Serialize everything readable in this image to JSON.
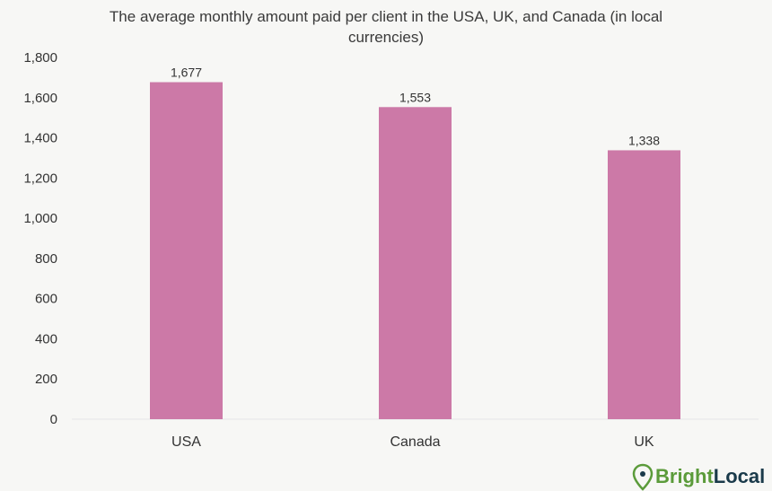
{
  "chart_data": {
    "type": "bar",
    "title_lines": [
      "The average monthly amount paid per client in the USA, UK, and Canada (in local",
      "currencies)"
    ],
    "categories": [
      "USA",
      "Canada",
      "UK"
    ],
    "values": [
      1677,
      1553,
      1338
    ],
    "value_labels": [
      "1,677",
      "1,553",
      "1,338"
    ],
    "xlabel": "",
    "ylabel": "",
    "ylim": [
      0,
      1800
    ],
    "yticks": [
      0,
      200,
      400,
      600,
      800,
      1000,
      1200,
      1400,
      1600,
      1800
    ],
    "ytick_labels": [
      "0",
      "200",
      "400",
      "600",
      "800",
      "1,000",
      "1,200",
      "1,400",
      "1,600",
      "1,800"
    ],
    "grid": false,
    "bar_color": "#cc79a7"
  },
  "brand": {
    "part1": "Bright",
    "part2": "Local",
    "color1": "#5b9b3a",
    "color2": "#1a3a4a",
    "icon": "map-pin-icon"
  }
}
